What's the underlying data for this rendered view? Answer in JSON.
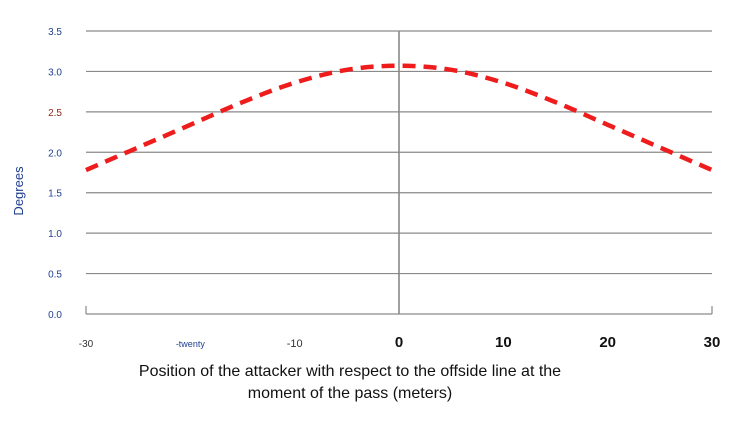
{
  "chart_data": {
    "type": "line",
    "title": "",
    "xlabel_line1": "Position of the attacker with respect to the offside line at the",
    "xlabel_line2": "moment of the pass (meters)",
    "ylabel": "Degrees",
    "xlim": [
      -30,
      30
    ],
    "ylim": [
      0.0,
      3.5
    ],
    "grid": true,
    "x_ticks": [
      "-30",
      "-twenty",
      "-10",
      "0",
      "10",
      "20",
      "30"
    ],
    "x_tick_values": [
      -30,
      -20,
      -10,
      0,
      10,
      20,
      30
    ],
    "y_ticks": [
      "0.0",
      "0.5",
      "1.0",
      "1.5",
      "2.0",
      "2.5",
      "3.0",
      "3.5"
    ],
    "y_tick_values": [
      0.0,
      0.5,
      1.0,
      1.5,
      2.0,
      2.5,
      3.0,
      3.5
    ],
    "series": [
      {
        "style": "dashed",
        "color": "#ee1c1c",
        "x": [
          -30,
          -25,
          -20,
          -15,
          -10,
          -5,
          0,
          5,
          10,
          15,
          20,
          25,
          30
        ],
        "y": [
          1.78,
          2.06,
          2.34,
          2.62,
          2.86,
          3.02,
          3.07,
          3.02,
          2.86,
          2.62,
          2.34,
          2.06,
          1.78
        ]
      }
    ]
  },
  "colors": {
    "grid": "#8a8a8a",
    "axis": "#888888",
    "line": "#ee1c1c",
    "ytick_text": "#1f3f8f",
    "ytick_text_alt": "#8b2a1a"
  }
}
